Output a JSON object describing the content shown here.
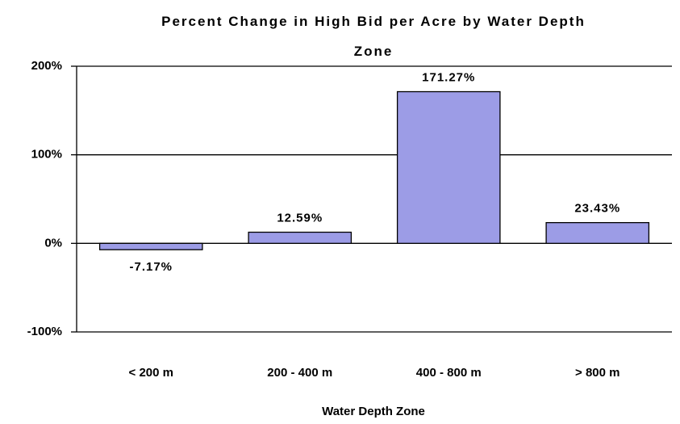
{
  "chart_data": {
    "type": "bar",
    "title": "Percent Change in High Bid per Acre by Water Depth Zone",
    "x_label": "Water Depth Zone",
    "categories": [
      "< 200 m",
      "200 - 400 m",
      "400 - 800 m",
      "> 800 m"
    ],
    "values": [
      -7.17,
      12.59,
      171.27,
      23.43
    ],
    "value_labels": [
      "-7.17%",
      "12.59%",
      "171.27%",
      "23.43%"
    ],
    "color": "#9c9ce6",
    "ylim": [
      -100,
      200
    ],
    "yticks": [
      {
        "value": -100,
        "label": "-100%"
      },
      {
        "value": 0,
        "label": "0%"
      },
      {
        "value": 100,
        "label": "100%"
      },
      {
        "value": 200,
        "label": "200%"
      }
    ],
    "grid": true
  }
}
